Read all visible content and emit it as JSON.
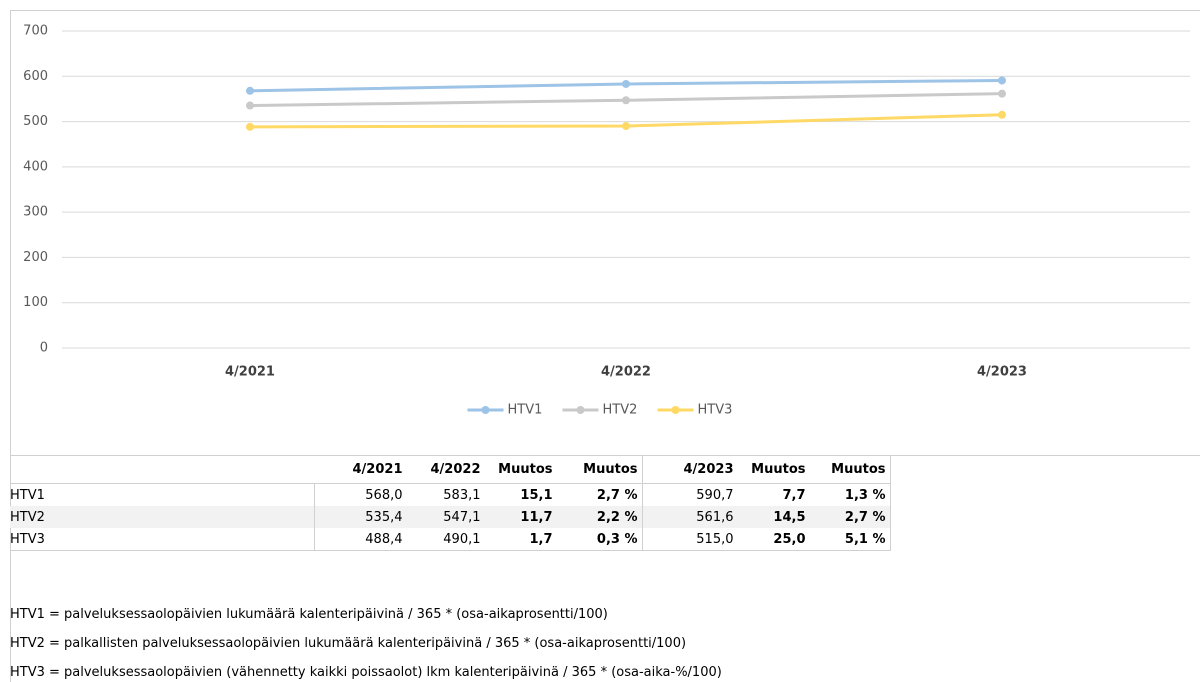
{
  "chart_data": {
    "type": "line",
    "categories": [
      "4/2021",
      "4/2022",
      "4/2023"
    ],
    "series": [
      {
        "name": "HTV1",
        "color": "#9dc3e6",
        "values": [
          568.0,
          583.1,
          590.7
        ]
      },
      {
        "name": "HTV2",
        "color": "#c9c9c9",
        "values": [
          535.4,
          547.1,
          561.6
        ]
      },
      {
        "name": "HTV3",
        "color": "#ffd966",
        "values": [
          488.4,
          490.1,
          515.0
        ]
      }
    ],
    "ylim": [
      0,
      700
    ],
    "yticks": [
      0,
      100,
      200,
      300,
      400,
      500,
      600,
      700
    ],
    "grid": true,
    "legend": "bottom"
  },
  "table": {
    "header": [
      "4/2021",
      "4/2022",
      "Muutos",
      "Muutos",
      "4/2023",
      "Muutos",
      "Muutos"
    ],
    "rows": [
      {
        "label": "HTV1",
        "cells": [
          "568,0",
          "583,1",
          "15,1",
          "2,7 %",
          "590,7",
          "7,7",
          "1,3 %"
        ]
      },
      {
        "label": "HTV2",
        "cells": [
          "535,4",
          "547,1",
          "11,7",
          "2,2 %",
          "561,6",
          "14,5",
          "2,7 %"
        ]
      },
      {
        "label": "HTV3",
        "cells": [
          "488,4",
          "490,1",
          "1,7",
          "0,3 %",
          "515,0",
          "25,0",
          "5,1 %"
        ]
      }
    ]
  },
  "notes": [
    "HTV1 = palveluksessaolopäivien lukumäärä kalenteripäivinä / 365 * (osa-aikaprosentti/100)",
    "HTV2 = palkallisten palveluksessaolopäivien lukumäärä kalenteripäivinä / 365 * (osa-aikaprosentti/100)",
    "HTV3 = palveluksessaolopäivien (vähennetty kaikki poissaolot) lkm kalenteripäivinä / 365 * (osa-aika-%/100)"
  ]
}
